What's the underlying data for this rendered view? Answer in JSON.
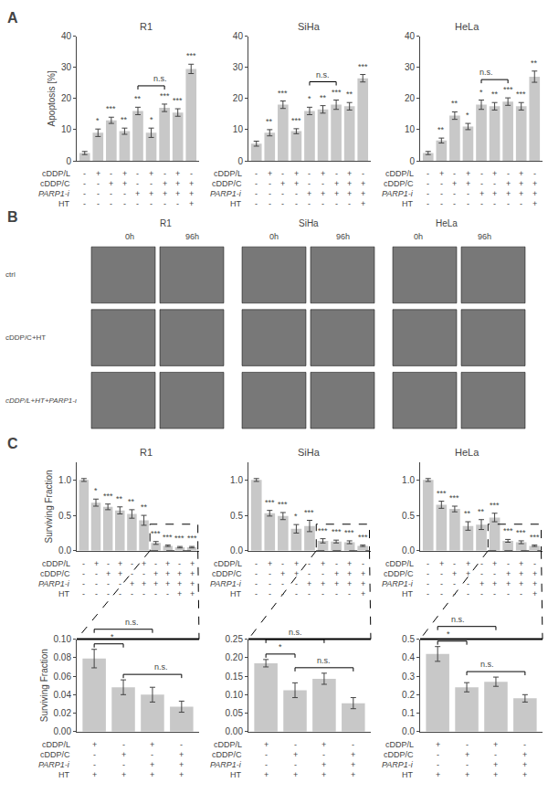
{
  "chart_data": [
    {
      "type": "bar",
      "title": "R1",
      "ylabel": "Apoptosis [%]",
      "annotations": [
        {
          "text": "A"
        },
        {
          "x": 1,
          "text": "*"
        },
        {
          "x": 2,
          "text": "***"
        },
        {
          "x": 3,
          "text": "**"
        },
        {
          "x": 4,
          "text": "**"
        },
        {
          "x": 5,
          "text": "*"
        },
        {
          "x": 6,
          "text": "***"
        },
        {
          "x": 7,
          "text": "***"
        },
        {
          "x": 8,
          "text": "***"
        },
        {
          "x": [
            4,
            6
          ],
          "text": "n.s."
        }
      ],
      "xlabel": [
        "cDDP/L",
        "cDDP/C",
        "PARP1-i",
        "HT"
      ],
      "categories": [
        [
          "-",
          "-",
          "-",
          "-"
        ],
        [
          "+",
          "-",
          "-",
          "-"
        ],
        [
          "-",
          "+",
          "-",
          "-"
        ],
        [
          "+",
          "+",
          "-",
          "-"
        ],
        [
          "-",
          "-",
          "+",
          "-"
        ],
        [
          "+",
          "-",
          "+",
          "-"
        ],
        [
          "-",
          "+",
          "+",
          "-"
        ],
        [
          "+",
          "+",
          "+",
          "-"
        ],
        [
          "-",
          "+",
          "+",
          "+"
        ]
      ],
      "values": [
        2.5,
        9.0,
        13.0,
        9.5,
        16.0,
        9.0,
        17.0,
        15.5,
        29.5
      ],
      "errors": [
        0.5,
        1.2,
        1.0,
        1.0,
        1.2,
        1.5,
        1.2,
        1.2,
        1.5
      ],
      "ylim": [
        0,
        40
      ],
      "yticks": [
        0,
        10,
        20,
        30,
        40
      ],
      "color": "#c8c8c8",
      "grid": false
    },
    {
      "type": "bar",
      "title": "SiHa",
      "annotations": [
        {
          "x": 1,
          "text": "**"
        },
        {
          "x": 2,
          "text": "***"
        },
        {
          "x": 3,
          "text": "***"
        },
        {
          "x": 4,
          "text": "*"
        },
        {
          "x": 5,
          "text": "**"
        },
        {
          "x": 6,
          "text": "***"
        },
        {
          "x": 7,
          "text": "**"
        },
        {
          "x": 8,
          "text": "***"
        },
        {
          "x": [
            4,
            6
          ],
          "text": "n.s."
        }
      ],
      "xlabel": [
        "cDDP/L",
        "cDDP/C",
        "PARP1-i",
        "HT"
      ],
      "categories": [
        [
          "-",
          "-",
          "-",
          "-"
        ],
        [
          "+",
          "-",
          "-",
          "-"
        ],
        [
          "-",
          "+",
          "-",
          "-"
        ],
        [
          "+",
          "+",
          "-",
          "-"
        ],
        [
          "-",
          "-",
          "+",
          "-"
        ],
        [
          "+",
          "-",
          "+",
          "-"
        ],
        [
          "-",
          "+",
          "+",
          "-"
        ],
        [
          "+",
          "+",
          "+",
          "-"
        ],
        [
          "-",
          "+",
          "+",
          "+"
        ]
      ],
      "values": [
        5.5,
        9.0,
        18.0,
        9.5,
        16.0,
        16.5,
        18.0,
        17.5,
        26.5
      ],
      "errors": [
        0.8,
        1.0,
        1.2,
        0.8,
        1.2,
        1.2,
        1.5,
        1.2,
        1.2
      ],
      "ylim": [
        0,
        40
      ],
      "yticks": [
        0,
        10,
        20,
        30,
        40
      ],
      "color": "#c8c8c8",
      "grid": false
    },
    {
      "type": "bar",
      "title": "HeLa",
      "annotations": [
        {
          "x": 1,
          "text": "**"
        },
        {
          "x": 2,
          "text": "**"
        },
        {
          "x": 3,
          "text": "*"
        },
        {
          "x": 4,
          "text": "*"
        },
        {
          "x": 5,
          "text": "**"
        },
        {
          "x": 6,
          "text": "***"
        },
        {
          "x": 7,
          "text": "***"
        },
        {
          "x": 8,
          "text": "**"
        },
        {
          "x": [
            4,
            6
          ],
          "text": "n.s."
        }
      ],
      "xlabel": [
        "cDDP/L",
        "cDDP/C",
        "PARP1-i",
        "HT"
      ],
      "categories": [
        [
          "-",
          "-",
          "-",
          "-"
        ],
        [
          "+",
          "-",
          "-",
          "-"
        ],
        [
          "-",
          "+",
          "-",
          "-"
        ],
        [
          "+",
          "+",
          "-",
          "-"
        ],
        [
          "-",
          "-",
          "+",
          "-"
        ],
        [
          "+",
          "-",
          "+",
          "-"
        ],
        [
          "-",
          "+",
          "+",
          "-"
        ],
        [
          "+",
          "+",
          "+",
          "-"
        ],
        [
          "-",
          "+",
          "+",
          "+"
        ]
      ],
      "values": [
        2.5,
        6.5,
        14.5,
        11.0,
        18.0,
        17.5,
        19.0,
        17.5,
        27.0
      ],
      "errors": [
        0.5,
        0.8,
        1.2,
        1.0,
        1.5,
        1.2,
        1.2,
        1.2,
        1.8
      ],
      "ylim": [
        0,
        40
      ],
      "yticks": [
        0,
        10,
        20,
        30,
        40
      ],
      "color": "#c8c8c8",
      "grid": false
    },
    {
      "type": "image_grid",
      "annotations": [
        {
          "text": "B"
        }
      ],
      "groups": [
        "R1",
        "SiHa",
        "HeLa"
      ],
      "categories": [
        "0h",
        "96h"
      ],
      "rows": [
        "ctrl",
        "cDDP/C+HT",
        "cDDP/L+HT+PARP1-ι"
      ],
      "color": "#787878"
    },
    {
      "type": "bar",
      "title": "R1",
      "ylabel": "Surviving Fraction",
      "annotations": [
        {
          "text": "C"
        },
        {
          "x": 1,
          "text": "*"
        },
        {
          "x": 2,
          "text": "***"
        },
        {
          "x": 3,
          "text": "**"
        },
        {
          "x": 4,
          "text": "**"
        },
        {
          "x": 5,
          "text": "**"
        },
        {
          "x": 6,
          "text": "***"
        },
        {
          "x": 7,
          "text": "***"
        },
        {
          "x": 8,
          "text": "***"
        },
        {
          "x": 9,
          "text": "***"
        }
      ],
      "xlabel": [
        "cDDP/L",
        "cDDP/C",
        "PARP1-i",
        "HT"
      ],
      "categories": [
        [
          "-",
          "-",
          "-",
          "-"
        ],
        [
          "+",
          "-",
          "-",
          "-"
        ],
        [
          "-",
          "+",
          "-",
          "-"
        ],
        [
          "+",
          "+",
          "-",
          "-"
        ],
        [
          "-",
          "-",
          "+",
          "-"
        ],
        [
          "+",
          "-",
          "+",
          "-"
        ],
        [
          "-",
          "+",
          "+",
          "-"
        ],
        [
          "+",
          "+",
          "+",
          "-"
        ],
        [
          "-",
          "+",
          "+",
          "+"
        ],
        [
          "+",
          "+",
          "+",
          "+"
        ]
      ],
      "values": [
        1.0,
        0.68,
        0.62,
        0.57,
        0.52,
        0.43,
        0.11,
        0.07,
        0.05,
        0.05
      ],
      "errors": [
        0.02,
        0.05,
        0.04,
        0.05,
        0.06,
        0.07,
        0.02,
        0.01,
        0.01,
        0.01
      ],
      "ylim": [
        0,
        1.25
      ],
      "yticks": [
        {
          "value": 0,
          "label": "0.0"
        },
        0.5,
        {
          "value": 1,
          "label": "1.0"
        }
      ],
      "color": "#c8c8c8",
      "grid": false
    },
    {
      "type": "bar",
      "title": "SiHa",
      "annotations": [
        {
          "x": 1,
          "text": "***"
        },
        {
          "x": 2,
          "text": "***"
        },
        {
          "x": 3,
          "text": "*"
        },
        {
          "x": 4,
          "text": "***"
        },
        {
          "x": 5,
          "text": "***"
        },
        {
          "x": 6,
          "text": "***"
        },
        {
          "x": 7,
          "text": "***"
        },
        {
          "x": 8,
          "text": "***"
        }
      ],
      "xlabel": [
        "cDDP/L",
        "cDDP/C",
        "PARP1-i",
        "HT"
      ],
      "categories": [
        [
          "-",
          "-",
          "-",
          "-"
        ],
        [
          "+",
          "-",
          "-",
          "-"
        ],
        [
          "-",
          "+",
          "-",
          "-"
        ],
        [
          "+",
          "+",
          "-",
          "-"
        ],
        [
          "-",
          "-",
          "+",
          "-"
        ],
        [
          "+",
          "-",
          "+",
          "-"
        ],
        [
          "-",
          "+",
          "+",
          "-"
        ],
        [
          "+",
          "+",
          "+",
          "-"
        ],
        [
          "-",
          "+",
          "+",
          "+"
        ]
      ],
      "values": [
        1.0,
        0.53,
        0.49,
        0.31,
        0.35,
        0.14,
        0.13,
        0.12,
        0.07
      ],
      "errors": [
        0.02,
        0.04,
        0.05,
        0.06,
        0.08,
        0.03,
        0.02,
        0.02,
        0.01
      ],
      "ylim": [
        0,
        1.25
      ],
      "yticks": [
        {
          "value": 0,
          "label": "0.0"
        },
        0.5,
        {
          "value": 1,
          "label": "1.0"
        }
      ],
      "color": "#c8c8c8",
      "grid": false
    },
    {
      "type": "bar",
      "title": "HeLa",
      "annotations": [
        {
          "x": 1,
          "text": "***"
        },
        {
          "x": 2,
          "text": "***"
        },
        {
          "x": 3,
          "text": "**"
        },
        {
          "x": 4,
          "text": "**"
        },
        {
          "x": 5,
          "text": "***"
        },
        {
          "x": 6,
          "text": "***"
        },
        {
          "x": 7,
          "text": "***"
        },
        {
          "x": 8,
          "text": "***"
        }
      ],
      "xlabel": [
        "cDDP/L",
        "cDDP/C",
        "PARP1-i",
        "HT"
      ],
      "categories": [
        [
          "-",
          "-",
          "-",
          "-"
        ],
        [
          "+",
          "-",
          "-",
          "-"
        ],
        [
          "-",
          "+",
          "-",
          "-"
        ],
        [
          "+",
          "+",
          "-",
          "-"
        ],
        [
          "-",
          "-",
          "+",
          "-"
        ],
        [
          "+",
          "-",
          "+",
          "-"
        ],
        [
          "-",
          "+",
          "+",
          "-"
        ],
        [
          "+",
          "+",
          "+",
          "-"
        ],
        [
          "-",
          "+",
          "+",
          "+"
        ]
      ],
      "values": [
        1.0,
        0.65,
        0.59,
        0.35,
        0.37,
        0.47,
        0.14,
        0.12,
        0.07
      ],
      "errors": [
        0.02,
        0.05,
        0.04,
        0.06,
        0.07,
        0.06,
        0.02,
        0.02,
        0.01
      ],
      "ylim": [
        0,
        1.25
      ],
      "yticks": [
        {
          "value": 0,
          "label": "0.0"
        },
        0.5,
        {
          "value": 1,
          "label": "1.0"
        }
      ],
      "color": "#c8c8c8",
      "grid": false
    },
    {
      "type": "bar",
      "ylabel": "Surviving Fraction",
      "annotations": [
        {
          "x": [
            0,
            1
          ],
          "text": "*"
        },
        {
          "x": [
            1,
            3
          ],
          "text": "n.s."
        },
        {
          "x": [
            0,
            2
          ],
          "text": "n.s."
        }
      ],
      "xlabel": [
        "cDDP/L",
        "cDDP/C",
        "PARP1-i",
        "HT"
      ],
      "categories": [
        [
          "+",
          "-",
          "-",
          "+"
        ],
        [
          "-",
          "+",
          "-",
          "+"
        ],
        [
          "+",
          "-",
          "+",
          "+"
        ],
        [
          "-",
          "+",
          "+",
          "+"
        ]
      ],
      "values": [
        0.079,
        0.048,
        0.04,
        0.027
      ],
      "errors": [
        0.01,
        0.008,
        0.008,
        0.006
      ],
      "ylim": [
        0,
        0.1
      ],
      "yticks": [
        {
          "value": 0,
          "label": "0.00"
        },
        0.02,
        0.04,
        0.06,
        0.08,
        {
          "value": 0.1,
          "label": "0.10"
        }
      ],
      "color": "#c8c8c8",
      "grid": false
    },
    {
      "type": "bar",
      "annotations": [
        {
          "x": [
            0,
            1
          ],
          "text": "*"
        },
        {
          "x": [
            1,
            3
          ],
          "text": "n.s."
        },
        {
          "x": [
            0,
            2
          ],
          "text": "n.s."
        }
      ],
      "xlabel": [
        "cDDP/L",
        "cDDP/C",
        "PARP1-i",
        "HT"
      ],
      "categories": [
        [
          "+",
          "-",
          "-",
          "+"
        ],
        [
          "-",
          "+",
          "-",
          "+"
        ],
        [
          "+",
          "-",
          "+",
          "+"
        ],
        [
          "-",
          "+",
          "+",
          "+"
        ]
      ],
      "values": [
        0.185,
        0.112,
        0.143,
        0.077
      ],
      "errors": [
        0.01,
        0.02,
        0.015,
        0.015
      ],
      "ylim": [
        0,
        0.25
      ],
      "yticks": [
        {
          "value": 0,
          "label": "0.00"
        },
        0.05,
        {
          "value": 0.1,
          "label": "0.10"
        },
        0.15,
        {
          "value": 0.2,
          "label": "0.20"
        },
        0.25
      ],
      "color": "#c8c8c8",
      "grid": false
    },
    {
      "type": "bar",
      "annotations": [
        {
          "x": [
            0,
            1
          ],
          "text": "*"
        },
        {
          "x": [
            1,
            3
          ],
          "text": "n.s."
        },
        {
          "x": [
            0,
            2
          ],
          "text": "n.s."
        }
      ],
      "xlabel": [
        "cDDP/L",
        "cDDP/C",
        "PARP1-i",
        "HT"
      ],
      "categories": [
        [
          "+",
          "-",
          "-",
          "+"
        ],
        [
          "-",
          "+",
          "-",
          "+"
        ],
        [
          "+",
          "-",
          "+",
          "+"
        ],
        [
          "-",
          "+",
          "+",
          "+"
        ]
      ],
      "values": [
        0.42,
        0.24,
        0.27,
        0.18
      ],
      "errors": [
        0.04,
        0.025,
        0.025,
        0.02
      ],
      "ylim": [
        0,
        0.5
      ],
      "yticks": [
        {
          "value": 0,
          "label": "0.0"
        },
        0.1,
        0.2,
        0.3,
        0.4,
        0.5
      ],
      "color": "#c8c8c8",
      "grid": false
    }
  ]
}
